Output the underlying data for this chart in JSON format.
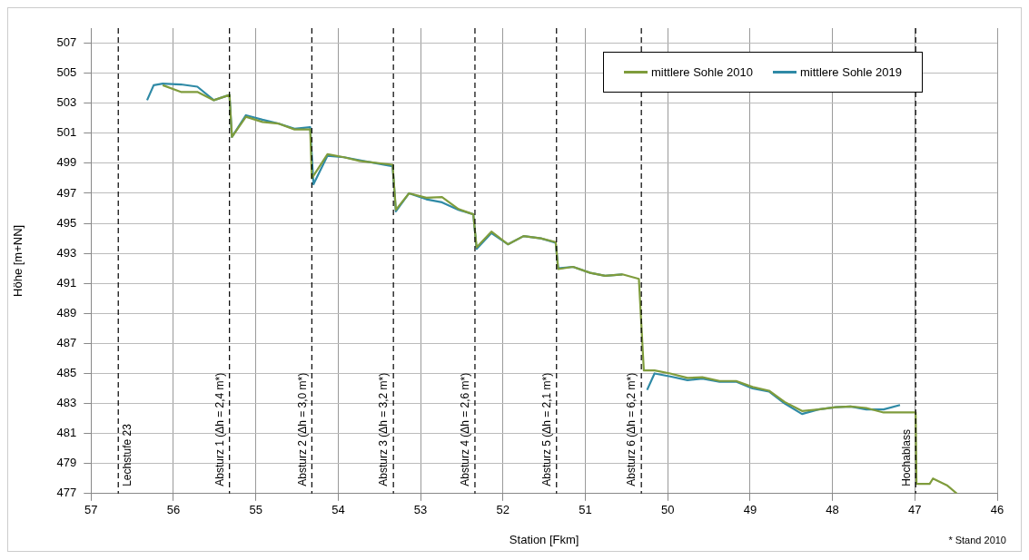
{
  "chart_data": {
    "type": "line",
    "xlabel": "Station [Fkm]",
    "ylabel": "Höhe [m+NN]",
    "xlim": [
      57,
      46
    ],
    "xticks": [
      57,
      56,
      55,
      54,
      53,
      52,
      51,
      50,
      49,
      48,
      47,
      46
    ],
    "ylim": [
      477,
      508
    ],
    "yticks": [
      477,
      479,
      481,
      483,
      485,
      487,
      489,
      491,
      493,
      495,
      497,
      499,
      501,
      503,
      505,
      507
    ],
    "grid": true,
    "legend": "top right",
    "marker": "none",
    "line_style": "solid",
    "series": [
      {
        "name": "mittlere Sohle 2010",
        "color": "#7f9c3c",
        "x": [
          56.13,
          55.91,
          55.71,
          55.51,
          55.32,
          55.29,
          55.12,
          54.92,
          54.73,
          54.53,
          54.34,
          54.32,
          54.13,
          53.93,
          53.74,
          53.34,
          53.3,
          53.14,
          52.93,
          52.74,
          52.54,
          52.36,
          52.32,
          52.14,
          51.94,
          51.75,
          51.54,
          51.36,
          51.33,
          51.15,
          50.94,
          50.76,
          50.55,
          50.35,
          50.29,
          50.16,
          49.97,
          49.76,
          49.58,
          49.37,
          49.17,
          48.97,
          48.77,
          48.58,
          48.37,
          48.17,
          47.96,
          47.78,
          47.59,
          47.38,
          46.99,
          46.98,
          46.82,
          46.78,
          46.61,
          46.49
        ],
        "values": [
          504.2,
          503.75,
          503.75,
          503.2,
          503.55,
          500.75,
          502.1,
          501.75,
          501.65,
          501.25,
          501.25,
          498.0,
          499.6,
          499.4,
          499.15,
          498.9,
          495.9,
          497.0,
          496.7,
          496.75,
          495.95,
          495.6,
          493.4,
          494.45,
          493.6,
          494.15,
          494.0,
          493.75,
          491.95,
          492.1,
          491.7,
          491.5,
          491.6,
          491.3,
          485.2,
          485.2,
          485.0,
          484.7,
          484.75,
          484.5,
          484.5,
          484.1,
          483.85,
          483.1,
          482.5,
          482.6,
          482.75,
          482.8,
          482.7,
          482.4,
          482.4,
          477.65,
          477.65,
          478.0,
          477.55,
          477.0
        ]
      },
      {
        "name": "mittlere Sohle 2019",
        "color": "#2f8aa6",
        "x": [
          56.32,
          56.24,
          56.13,
          55.91,
          55.71,
          55.51,
          55.32,
          55.29,
          55.12,
          54.92,
          54.73,
          54.53,
          54.34,
          54.3,
          54.13,
          53.93,
          53.74,
          53.34,
          53.3,
          53.14,
          52.93,
          52.74,
          52.54,
          52.36,
          52.32,
          52.14,
          51.94,
          51.75,
          51.54,
          51.36,
          51.33,
          51.15,
          50.94,
          50.76,
          50.55,
          50.4,
          50.25,
          50.16,
          49.97,
          49.76,
          49.58,
          49.37,
          49.17,
          48.97,
          48.77,
          48.58,
          48.37,
          48.17,
          47.96,
          47.78,
          47.59,
          47.38,
          47.18
        ],
        "values": [
          503.2,
          504.2,
          504.3,
          504.25,
          504.1,
          503.2,
          503.55,
          500.75,
          502.2,
          501.9,
          501.65,
          501.3,
          501.4,
          497.6,
          499.5,
          499.4,
          499.2,
          498.8,
          495.8,
          497.0,
          496.6,
          496.4,
          495.9,
          495.6,
          493.3,
          494.35,
          493.6,
          494.15,
          494.0,
          493.7,
          492.0,
          492.1,
          491.7,
          491.5,
          491.6,
          null,
          483.9,
          485.0,
          484.8,
          484.55,
          484.65,
          484.45,
          484.45,
          484.0,
          483.8,
          483.0,
          482.3,
          482.6,
          482.75,
          482.8,
          482.6,
          482.6,
          482.9
        ]
      }
    ],
    "ref_lines": [
      {
        "axis": "x",
        "value": 56.67,
        "color": "#000000",
        "line_style": "dashed"
      },
      {
        "axis": "x",
        "value": 55.32,
        "color": "#000000",
        "line_style": "dashed"
      },
      {
        "axis": "x",
        "value": 54.32,
        "color": "#000000",
        "line_style": "dashed"
      },
      {
        "axis": "x",
        "value": 53.33,
        "color": "#000000",
        "line_style": "dashed"
      },
      {
        "axis": "x",
        "value": 52.34,
        "color": "#000000",
        "line_style": "dashed"
      },
      {
        "axis": "x",
        "value": 51.35,
        "color": "#000000",
        "line_style": "dashed"
      },
      {
        "axis": "x",
        "value": 50.32,
        "color": "#000000",
        "line_style": "dashed"
      },
      {
        "axis": "x",
        "value": 46.99,
        "color": "#000000",
        "line_style": "dashed"
      }
    ],
    "annotations": [
      {
        "text": "Lechstufe 23",
        "x": 56.67,
        "y": 477
      },
      {
        "text": "Absturz 1 (Δh = 2,4 m*)",
        "x": 55.32,
        "y": 477
      },
      {
        "text": "Absturz 2 (Δh = 3,0 m*)",
        "x": 54.32,
        "y": 477
      },
      {
        "text": "Absturz 3 (Δh = 3,2 m*)",
        "x": 53.33,
        "y": 477
      },
      {
        "text": "Absturz 4 (Δh = 2,6 m*)",
        "x": 52.34,
        "y": 477
      },
      {
        "text": "Absturz 5 (Δh = 2,1 m*)",
        "x": 51.35,
        "y": 477
      },
      {
        "text": "Absturz 6 (Δh = 6,2 m*)",
        "x": 50.32,
        "y": 477
      },
      {
        "text": "Hochablass",
        "x": 46.99,
        "y": 477
      },
      "* Stand 2010"
    ]
  }
}
